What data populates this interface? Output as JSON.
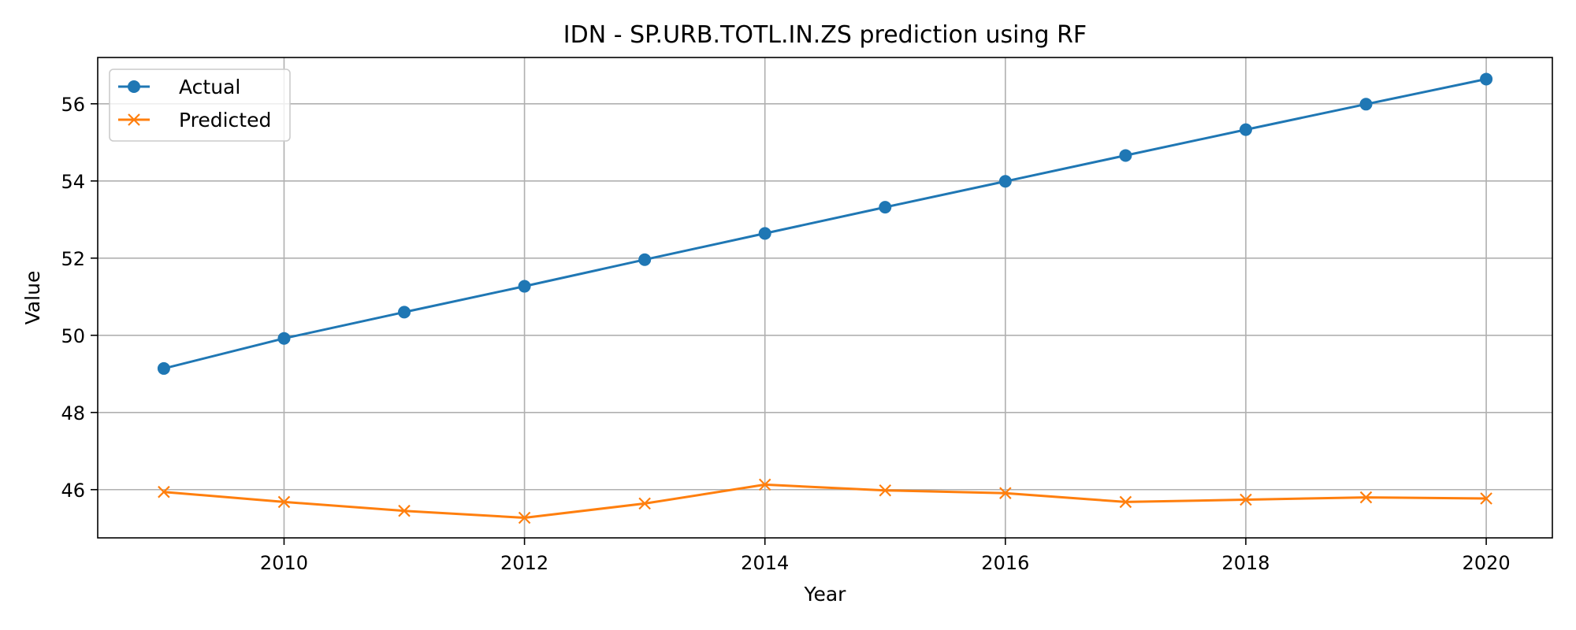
{
  "chart_data": {
    "type": "line",
    "title": "IDN - SP.URB.TOTL.IN.ZS prediction using RF",
    "xlabel": "Year",
    "ylabel": "Value",
    "x": [
      2009,
      2010,
      2011,
      2012,
      2013,
      2014,
      2015,
      2016,
      2017,
      2018,
      2019,
      2020
    ],
    "xlim": [
      2008.45,
      2020.55
    ],
    "ylim": [
      44.75,
      57.2
    ],
    "xticks": [
      2010,
      2012,
      2014,
      2016,
      2018,
      2020
    ],
    "yticks": [
      46,
      48,
      50,
      52,
      54,
      56
    ],
    "grid": true,
    "legend_position": "top-left",
    "series": [
      {
        "name": "Actual",
        "color": "#1f77b4",
        "marker": "circle",
        "values": [
          49.14,
          49.92,
          50.6,
          51.27,
          51.96,
          52.64,
          53.32,
          53.99,
          54.66,
          55.33,
          55.99,
          56.64
        ]
      },
      {
        "name": "Predicted",
        "color": "#ff7f0e",
        "marker": "x",
        "values": [
          45.94,
          45.68,
          45.45,
          45.27,
          45.64,
          46.13,
          45.98,
          45.91,
          45.68,
          45.74,
          45.8,
          45.77
        ]
      }
    ]
  }
}
